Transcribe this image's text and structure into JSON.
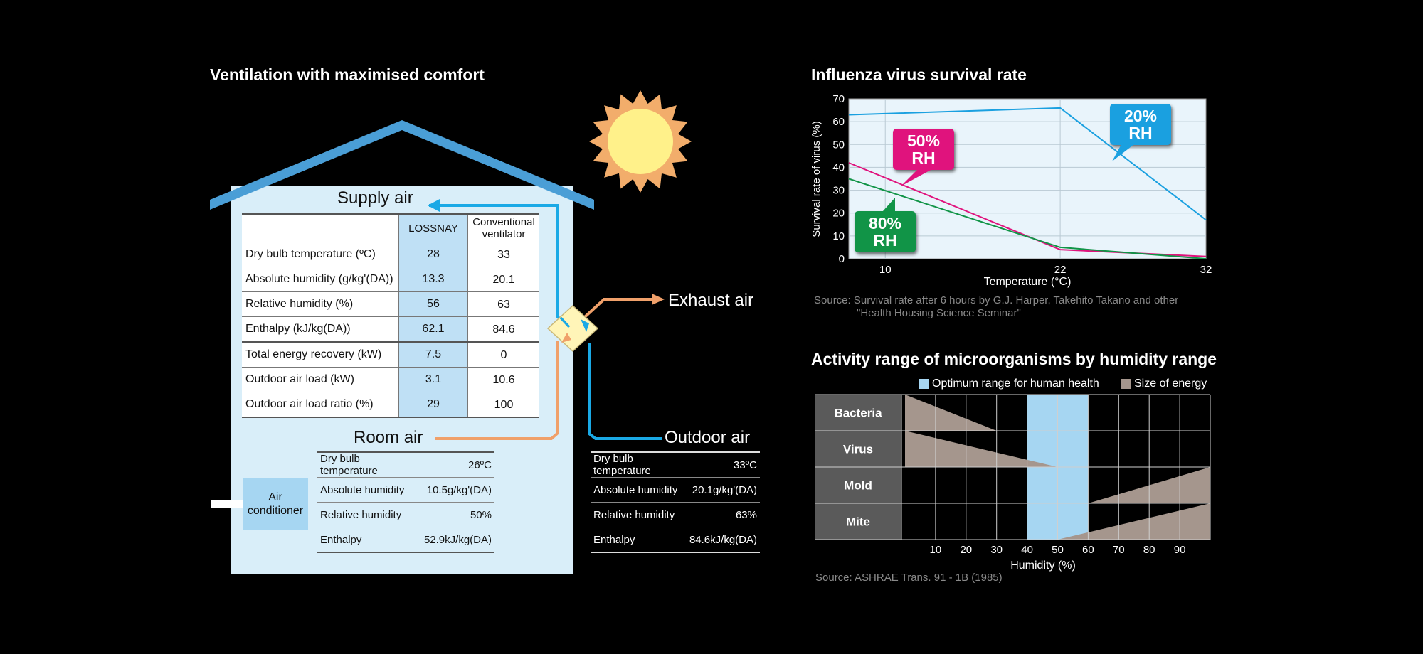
{
  "left": {
    "title": "Ventilation with maximised comfort",
    "supply_air": "Supply air",
    "exhaust_air": "Exhaust air",
    "room_air": "Room air",
    "outdoor_air": "Outdoor air",
    "air_conditioner": "Air conditioner",
    "table": {
      "headers": [
        "",
        "LOSSNAY",
        "Conventional ventilator"
      ],
      "rows": [
        {
          "label": "Dry bulb temperature (ºC)",
          "lossnay": "28",
          "conventional": "33"
        },
        {
          "label": "Absolute humidity (g/kg'(DA))",
          "lossnay": "13.3",
          "conventional": "20.1"
        },
        {
          "label": "Relative humidity (%)",
          "lossnay": "56",
          "conventional": "63"
        },
        {
          "label": "Enthalpy (kJ/kg(DA))",
          "lossnay": "62.1",
          "conventional": "84.6"
        },
        {
          "label": "Total energy recovery (kW)",
          "lossnay": "7.5",
          "conventional": "0"
        },
        {
          "label": "Outdoor air load (kW)",
          "lossnay": "3.1",
          "conventional": "10.6"
        },
        {
          "label": "Outdoor air load ratio (%)",
          "lossnay": "29",
          "conventional": "100"
        }
      ]
    },
    "room_conditions": [
      {
        "label": "Dry bulb temperature",
        "value": "26ºC"
      },
      {
        "label": "Absolute humidity",
        "value": "10.5g/kg'(DA)"
      },
      {
        "label": "Relative humidity",
        "value": "50%"
      },
      {
        "label": "Enthalpy",
        "value": "52.9kJ/kg(DA)"
      }
    ],
    "outdoor_conditions": [
      {
        "label": "Dry bulb temperature",
        "value": "33ºC"
      },
      {
        "label": "Absolute humidity",
        "value": "20.1g/kg'(DA)"
      },
      {
        "label": "Relative humidity",
        "value": "63%"
      },
      {
        "label": "Enthalpy",
        "value": "84.6kJ/kg(DA)"
      }
    ]
  },
  "influenza": {
    "title": "Influenza virus survival rate",
    "source_line1": "Source: Survival rate after 6 hours by G.J. Harper, Takehito Takano and other",
    "source_line2": "\"Health Housing Science Seminar\"",
    "bubbles": {
      "rh20": [
        "20%",
        "RH"
      ],
      "rh50": [
        "50%",
        "RH"
      ],
      "rh80": [
        "80%",
        "RH"
      ]
    }
  },
  "microorganisms": {
    "title": "Activity range of microorganisms by humidity range",
    "legend_optimum": "Optimum range for human health",
    "legend_energy": "Size of energy",
    "organisms": [
      "Bacteria",
      "Virus",
      "Mold",
      "Mite"
    ],
    "source": "Source: ASHRAE Trans. 91 - 1B (1985)"
  },
  "colors": {
    "house_fill": "#d9eef9",
    "roof": "#4a9ed6",
    "supply_line": "#1aa9e6",
    "exhaust_line": "#f0a06a",
    "rh20": "#1aa0e0",
    "rh50": "#e0137d",
    "rh80": "#119447",
    "optimum": "#a6d6f2",
    "energy": "#a5968d"
  },
  "chart_data": [
    {
      "type": "line",
      "title": "Influenza virus survival rate",
      "xlabel": "Temperature (°C)",
      "ylabel": "Survival rate of virus (%)",
      "x": [
        10,
        22,
        32
      ],
      "xlim": [
        7.5,
        32
      ],
      "ylim": [
        0,
        70
      ],
      "yticks": [
        0,
        10,
        20,
        30,
        40,
        50,
        60,
        70
      ],
      "xticks": [
        10,
        22,
        32
      ],
      "series": [
        {
          "name": "20% RH",
          "color": "#1aa0e0",
          "points": [
            [
              7.5,
              63
            ],
            [
              22,
              66
            ],
            [
              32,
              17
            ]
          ]
        },
        {
          "name": "50% RH",
          "color": "#e0137d",
          "points": [
            [
              7.5,
              42
            ],
            [
              22,
              4
            ],
            [
              32,
              1
            ]
          ]
        },
        {
          "name": "80% RH",
          "color": "#119447",
          "points": [
            [
              7.5,
              35
            ],
            [
              22,
              5
            ],
            [
              32,
              0
            ]
          ]
        }
      ]
    },
    {
      "type": "range",
      "title": "Activity range of microorganisms by humidity range",
      "xlabel": "Humidity (%)",
      "xlim": [
        0,
        100
      ],
      "xticks": [
        10,
        20,
        30,
        40,
        50,
        60,
        70,
        80,
        90
      ],
      "optimum_range": [
        40,
        60
      ],
      "series": [
        {
          "name": "Bacteria",
          "range": [
            0,
            30
          ],
          "peak": "low"
        },
        {
          "name": "Virus",
          "range": [
            0,
            50
          ],
          "peak": "low"
        },
        {
          "name": "Mold",
          "range": [
            60,
            100
          ],
          "peak": "high"
        },
        {
          "name": "Mite",
          "range": [
            50,
            100
          ],
          "peak": "high"
        }
      ]
    }
  ]
}
